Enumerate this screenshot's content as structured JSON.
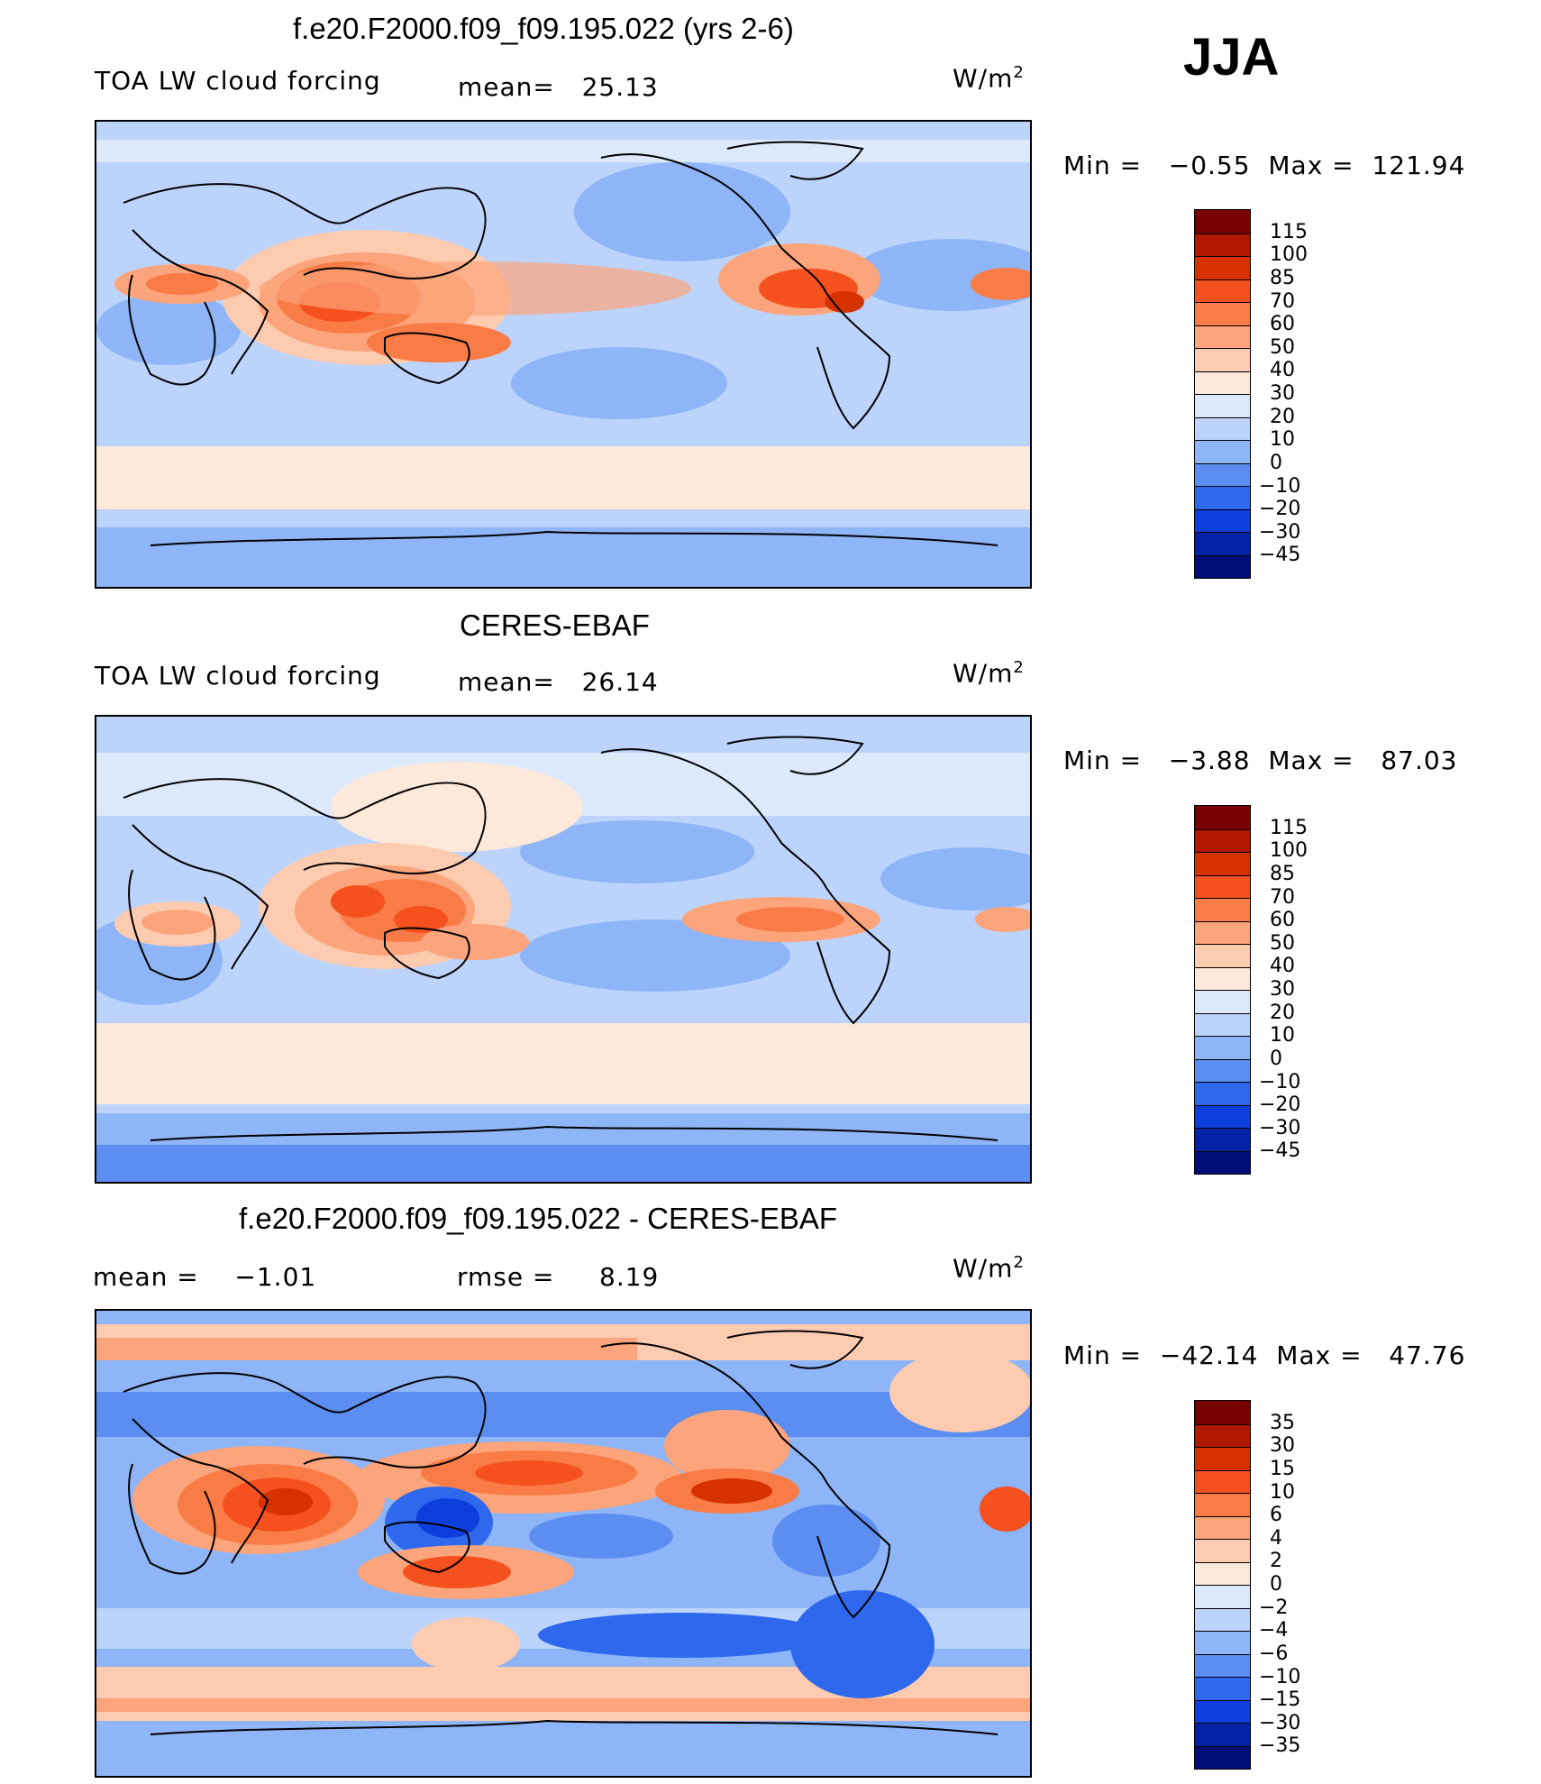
{
  "season": "JJA",
  "panels": [
    {
      "title": "f.e20.F2000.f09_f09.195.022 (yrs 2-6)",
      "left_label": "TOA LW cloud forcing",
      "stat_label": "mean=",
      "stat_value": "25.13",
      "units_label": "W/m",
      "units_sup": "2",
      "minmax": {
        "min_label": "Min =",
        "min_value": "−0.55",
        "max_label": "Max =",
        "max_value": "121.94"
      },
      "levels": [
        "115",
        "100",
        "85",
        "70",
        "60",
        "50",
        "40",
        "30",
        "20",
        "10",
        "0",
        "−10",
        "−20",
        "−30",
        "−45"
      ],
      "colors": [
        "#7a0000",
        "#b01800",
        "#d63200",
        "#f4511e",
        "#f97c47",
        "#fca47b",
        "#fdcbb0",
        "#fde9d9",
        "#dbe9fb",
        "#bcd4fb",
        "#8eb5f7",
        "#5b8ef0",
        "#2d68ed",
        "#0e3fdc",
        "#0323a8",
        "#000e7a"
      ]
    },
    {
      "title": "CERES-EBAF",
      "left_label": "TOA LW cloud forcing",
      "stat_label": "mean=",
      "stat_value": "26.14",
      "units_label": "W/m",
      "units_sup": "2",
      "minmax": {
        "min_label": "Min =",
        "min_value": "−3.88",
        "max_label": "Max =",
        "max_value": "87.03"
      },
      "levels": [
        "115",
        "100",
        "85",
        "70",
        "60",
        "50",
        "40",
        "30",
        "20",
        "10",
        "0",
        "−10",
        "−20",
        "−30",
        "−45"
      ],
      "colors": [
        "#7a0000",
        "#b01800",
        "#d63200",
        "#f4511e",
        "#f97c47",
        "#fca47b",
        "#fdcbb0",
        "#fde9d9",
        "#dbe9fb",
        "#bcd4fb",
        "#8eb5f7",
        "#5b8ef0",
        "#2d68ed",
        "#0e3fdc",
        "#0323a8",
        "#000e7a"
      ]
    },
    {
      "title": "f.e20.F2000.f09_f09.195.022 - CERES-EBAF",
      "left_label": "mean =",
      "left_value": "−1.01",
      "stat_label": "rmse =",
      "stat_value": "8.19",
      "units_label": "W/m",
      "units_sup": "2",
      "minmax": {
        "min_label": "Min =",
        "min_value": "−42.14",
        "max_label": "Max =",
        "max_value": "47.76"
      },
      "levels": [
        "35",
        "30",
        "15",
        "10",
        "6",
        "4",
        "2",
        "0",
        "−2",
        "−4",
        "−6",
        "−10",
        "−15",
        "−30",
        "−35"
      ],
      "colors": [
        "#7a0000",
        "#b01800",
        "#d63200",
        "#f4511e",
        "#f97c47",
        "#fca47b",
        "#fdcbb0",
        "#fde9d9",
        "#dbe9fb",
        "#bcd4fb",
        "#8eb5f7",
        "#5b8ef0",
        "#2d68ed",
        "#0e3fdc",
        "#0323a8",
        "#000e7a"
      ]
    }
  ]
}
